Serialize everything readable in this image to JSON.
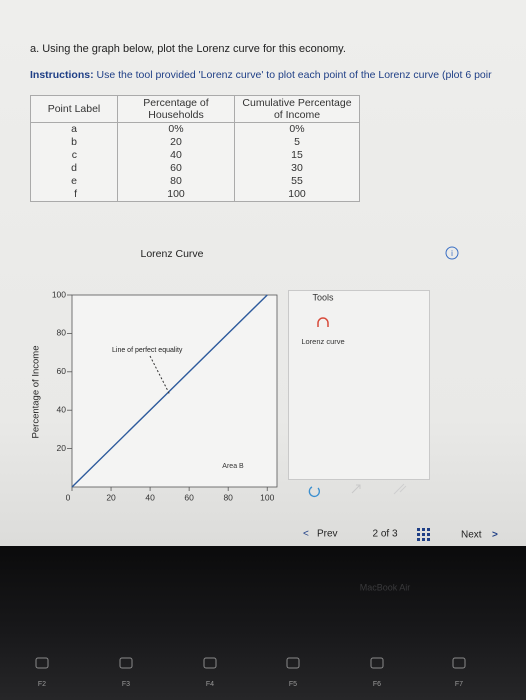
{
  "question": "a. Using the graph below, plot the Lorenz curve for this economy.",
  "instructions": {
    "label": "Instructions:",
    "text": "Use the tool provided 'Lorenz curve' to plot each point of the Lorenz curve (plot 6 poir"
  },
  "table": {
    "columns": [
      "Point Label",
      "Percentage of Households",
      "Cumulative Percentage of Income"
    ],
    "rows": [
      [
        "a",
        "0%",
        "0%"
      ],
      [
        "b",
        "20",
        "5"
      ],
      [
        "c",
        "40",
        "15"
      ],
      [
        "d",
        "60",
        "30"
      ],
      [
        "e",
        "80",
        "55"
      ],
      [
        "f",
        "100",
        "100"
      ]
    ]
  },
  "chart_data": {
    "type": "line",
    "title": "Lorenz Curve",
    "y_label": "Percentage of Income",
    "xlim": [
      0,
      105
    ],
    "ylim": [
      0,
      100
    ],
    "xticks": [
      0,
      20,
      40,
      60,
      80,
      100
    ],
    "yticks": [
      20,
      40,
      60,
      80,
      100
    ],
    "series": [
      {
        "name": "Line of perfect equality",
        "color": "#2d5a9c",
        "x": [
          0,
          100
        ],
        "values": [
          0,
          100
        ]
      }
    ],
    "annotations": [
      "Area B"
    ]
  },
  "tools": {
    "title": "Tools",
    "items": [
      "Lorenz curve"
    ]
  },
  "navigation": {
    "prev": "Prev",
    "page": "2 of 3",
    "next": "Next"
  },
  "bezel": {
    "brand": "MacBook Air",
    "keys": [
      "F2",
      "F3",
      "F4",
      "F5",
      "F6",
      "F7"
    ]
  }
}
